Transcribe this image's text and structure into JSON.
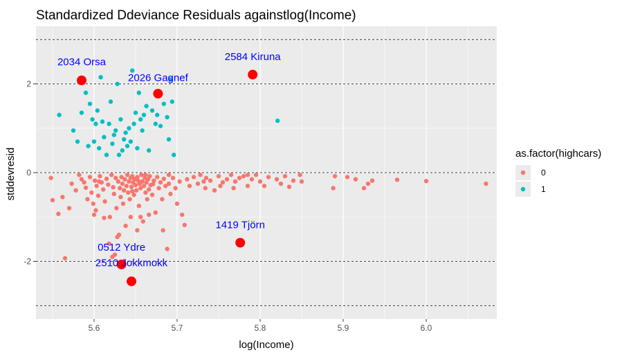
{
  "chart_data": {
    "type": "scatter",
    "title": "Standardized Ddeviance Residuals againstlog(Income)",
    "xlabel": "log(Income)",
    "ylabel": "stddevresid",
    "xlim": [
      5.53,
      6.085
    ],
    "ylim": [
      -3.3,
      3.3
    ],
    "x_ticks": [
      5.6,
      5.7,
      5.8,
      5.9,
      6.0
    ],
    "x_tick_labels": [
      "5.6",
      "5.7",
      "5.8",
      "5.9",
      "6.0"
    ],
    "y_ticks": [
      -2,
      0,
      2
    ],
    "y_tick_labels": [
      "-2",
      "0",
      "2"
    ],
    "grid": true,
    "reference_lines": [
      -3,
      -2,
      0,
      2,
      3
    ],
    "reference_line_style": "dashed",
    "legend": {
      "title": "as.factor(highcars)",
      "position": "right",
      "entries": [
        {
          "label": "0",
          "color": "#F8766D"
        },
        {
          "label": "1",
          "color": "#00BFC4"
        }
      ]
    },
    "colors": {
      "series0": "#F8766D",
      "series1": "#00BFC4",
      "highlight": "#FF0000",
      "annotation_text": "#0000FF",
      "panel_background": "#EBEBEB",
      "gridline": "#FFFFFF"
    },
    "series": [
      {
        "name": "0",
        "color": "#F8766D",
        "points": [
          [
            5.548,
            -0.12
          ],
          [
            5.55,
            -0.62
          ],
          [
            5.557,
            -0.93
          ],
          [
            5.562,
            -0.55
          ],
          [
            5.565,
            -1.93
          ],
          [
            5.57,
            -0.8
          ],
          [
            5.573,
            -0.25
          ],
          [
            5.578,
            -0.4
          ],
          [
            5.582,
            -0.05
          ],
          [
            5.585,
            -0.15
          ],
          [
            5.588,
            -0.22
          ],
          [
            5.59,
            -0.34
          ],
          [
            5.592,
            -0.6
          ],
          [
            5.595,
            -0.1
          ],
          [
            5.597,
            -0.45
          ],
          [
            5.599,
            -0.7
          ],
          [
            5.601,
            -0.18
          ],
          [
            5.603,
            -0.3
          ],
          [
            5.605,
            -0.52
          ],
          [
            5.607,
            -0.08
          ],
          [
            5.609,
            -0.22
          ],
          [
            5.611,
            -0.38
          ],
          [
            5.613,
            -0.65
          ],
          [
            5.615,
            -0.14
          ],
          [
            5.617,
            -0.27
          ],
          [
            5.619,
            -1.0
          ],
          [
            5.621,
            -0.05
          ],
          [
            5.623,
            -0.33
          ],
          [
            5.624,
            -0.48
          ],
          [
            5.626,
            -0.12
          ],
          [
            5.627,
            -0.8
          ],
          [
            5.629,
            -0.2
          ],
          [
            5.63,
            -1.4
          ],
          [
            5.631,
            -0.35
          ],
          [
            5.632,
            -0.55
          ],
          [
            5.633,
            -0.1
          ],
          [
            5.634,
            -0.25
          ],
          [
            5.635,
            -0.7
          ],
          [
            5.636,
            -0.4
          ],
          [
            5.637,
            -0.15
          ],
          [
            5.638,
            -1.2
          ],
          [
            5.639,
            -0.3
          ],
          [
            5.64,
            -0.05
          ],
          [
            5.641,
            -0.45
          ],
          [
            5.642,
            -0.2
          ],
          [
            5.643,
            -0.6
          ],
          [
            5.644,
            -0.12
          ],
          [
            5.645,
            -0.32
          ],
          [
            5.646,
            -0.08
          ],
          [
            5.647,
            -0.22
          ],
          [
            5.648,
            -0.5
          ],
          [
            5.649,
            -0.15
          ],
          [
            5.65,
            -0.28
          ],
          [
            5.651,
            -0.4
          ],
          [
            5.652,
            -0.1
          ],
          [
            5.653,
            -0.18
          ],
          [
            5.654,
            -0.75
          ],
          [
            5.655,
            -0.25
          ],
          [
            5.656,
            -0.35
          ],
          [
            5.657,
            -0.05
          ],
          [
            5.658,
            -0.2
          ],
          [
            5.659,
            -1.1
          ],
          [
            5.66,
            -0.3
          ],
          [
            5.661,
            -0.12
          ],
          [
            5.662,
            -0.45
          ],
          [
            5.663,
            -0.22
          ],
          [
            5.664,
            -0.6
          ],
          [
            5.665,
            -0.15
          ],
          [
            5.666,
            -0.38
          ],
          [
            5.667,
            -0.08
          ],
          [
            5.668,
            -0.28
          ],
          [
            5.67,
            -0.5
          ],
          [
            5.672,
            -0.18
          ],
          [
            5.674,
            -0.9
          ],
          [
            5.676,
            -0.1
          ],
          [
            5.678,
            -0.35
          ],
          [
            5.68,
            -0.22
          ],
          [
            5.682,
            -0.6
          ],
          [
            5.684,
            -0.14
          ],
          [
            5.686,
            -0.3
          ],
          [
            5.688,
            -1.72
          ],
          [
            5.69,
            -0.25
          ],
          [
            5.692,
            -0.48
          ],
          [
            5.695,
            -0.12
          ],
          [
            5.698,
            -0.35
          ],
          [
            5.7,
            -0.7
          ],
          [
            5.703,
            -0.2
          ],
          [
            5.706,
            -0.95
          ],
          [
            5.709,
            -1.18
          ],
          [
            5.712,
            -0.15
          ],
          [
            5.715,
            -0.3
          ],
          [
            5.72,
            -0.1
          ],
          [
            5.725,
            -0.25
          ],
          [
            5.728,
            -0.05
          ],
          [
            5.732,
            -0.2
          ],
          [
            5.735,
            -0.12
          ],
          [
            5.74,
            -0.18
          ],
          [
            5.745,
            -0.4
          ],
          [
            5.75,
            -0.08
          ],
          [
            5.755,
            -0.22
          ],
          [
            5.76,
            -0.15
          ],
          [
            5.765,
            -0.05
          ],
          [
            5.77,
            -0.2
          ],
          [
            5.775,
            -0.12
          ],
          [
            5.78,
            -0.08
          ],
          [
            5.785,
            -0.3
          ],
          [
            5.79,
            -0.15
          ],
          [
            5.795,
            -0.05
          ],
          [
            5.8,
            -0.2
          ],
          [
            5.81,
            -0.1
          ],
          [
            5.82,
            -0.15
          ],
          [
            5.825,
            -0.25
          ],
          [
            5.83,
            -0.08
          ],
          [
            5.835,
            -0.32
          ],
          [
            5.84,
            -0.18
          ],
          [
            5.848,
            -0.05
          ],
          [
            5.85,
            -0.2
          ],
          [
            5.888,
            -0.35
          ],
          [
            5.89,
            -0.08
          ],
          [
            5.905,
            -0.1
          ],
          [
            5.915,
            -0.15
          ],
          [
            5.925,
            -0.35
          ],
          [
            5.93,
            -0.25
          ],
          [
            5.935,
            -0.18
          ],
          [
            5.965,
            -0.16
          ],
          [
            6.0,
            -0.19
          ],
          [
            6.072,
            -0.25
          ],
          [
            5.602,
            -0.85
          ],
          [
            5.618,
            -1.6
          ],
          [
            5.622,
            -1.9
          ],
          [
            5.628,
            -1.45
          ],
          [
            5.644,
            -1.0
          ],
          [
            5.652,
            -1.3
          ],
          [
            5.666,
            -0.95
          ],
          [
            5.683,
            -1.3
          ],
          [
            5.6,
            -0.95
          ],
          [
            5.612,
            -1.02
          ],
          [
            5.625,
            -1.85
          ],
          [
            5.656,
            -1.0
          ],
          [
            5.606,
            -0.2
          ],
          [
            5.646,
            -0.42
          ],
          [
            5.662,
            -0.05
          ],
          [
            5.671,
            -0.26
          ],
          [
            5.69,
            -0.05
          ],
          [
            5.734,
            -0.35
          ],
          [
            5.752,
            -0.3
          ],
          [
            5.768,
            -0.35
          ],
          [
            5.785,
            -0.05
          ],
          [
            5.805,
            -0.3
          ]
        ]
      },
      {
        "name": "1",
        "color": "#00BFC4",
        "points": [
          [
            5.558,
            1.3
          ],
          [
            5.575,
            0.95
          ],
          [
            5.58,
            0.7
          ],
          [
            5.585,
            1.35
          ],
          [
            5.59,
            1.8
          ],
          [
            5.593,
            0.6
          ],
          [
            5.595,
            1.55
          ],
          [
            5.598,
            1.2
          ],
          [
            5.6,
            0.7
          ],
          [
            5.602,
            1.1
          ],
          [
            5.604,
            1.4
          ],
          [
            5.606,
            0.55
          ],
          [
            5.608,
            2.15
          ],
          [
            5.61,
            1.15
          ],
          [
            5.612,
            0.8
          ],
          [
            5.615,
            0.4
          ],
          [
            5.618,
            1.1
          ],
          [
            5.62,
            1.6
          ],
          [
            5.622,
            0.65
          ],
          [
            5.624,
            0.85
          ],
          [
            5.626,
            0.95
          ],
          [
            5.628,
            2.0
          ],
          [
            5.63,
            0.4
          ],
          [
            5.632,
            1.2
          ],
          [
            5.634,
            0.5
          ],
          [
            5.636,
            0.75
          ],
          [
            5.638,
            0.9
          ],
          [
            5.64,
            0.6
          ],
          [
            5.642,
            1.0
          ],
          [
            5.644,
            0.7
          ],
          [
            5.646,
            2.3
          ],
          [
            5.648,
            1.1
          ],
          [
            5.65,
            1.35
          ],
          [
            5.652,
            0.55
          ],
          [
            5.654,
            1.8
          ],
          [
            5.656,
            1.2
          ],
          [
            5.658,
            0.95
          ],
          [
            5.66,
            1.3
          ],
          [
            5.663,
            1.5
          ],
          [
            5.666,
            0.5
          ],
          [
            5.67,
            1.4
          ],
          [
            5.674,
            1.1
          ],
          [
            5.676,
            1.3
          ],
          [
            5.68,
            1.05
          ],
          [
            5.684,
            1.55
          ],
          [
            5.688,
            1.25
          ],
          [
            5.69,
            0.75
          ],
          [
            5.692,
            2.1
          ],
          [
            5.694,
            1.6
          ],
          [
            5.696,
            0.4
          ],
          [
            5.821,
            1.17
          ]
        ]
      }
    ],
    "highlighted": [
      {
        "label": "2034 Orsa",
        "x": 5.585,
        "y": 2.08
      },
      {
        "label": "2026 Gagnef",
        "x": 5.677,
        "y": 1.78
      },
      {
        "label": "2584 Kiruna",
        "x": 5.791,
        "y": 2.21
      },
      {
        "label": "1419 Tjörn",
        "x": 5.776,
        "y": -1.58
      },
      {
        "label": "0512 Ydre",
        "x": 5.633,
        "y": -2.07
      },
      {
        "label": "2510 Jokkmokk",
        "x": 5.645,
        "y": -2.45
      }
    ]
  }
}
